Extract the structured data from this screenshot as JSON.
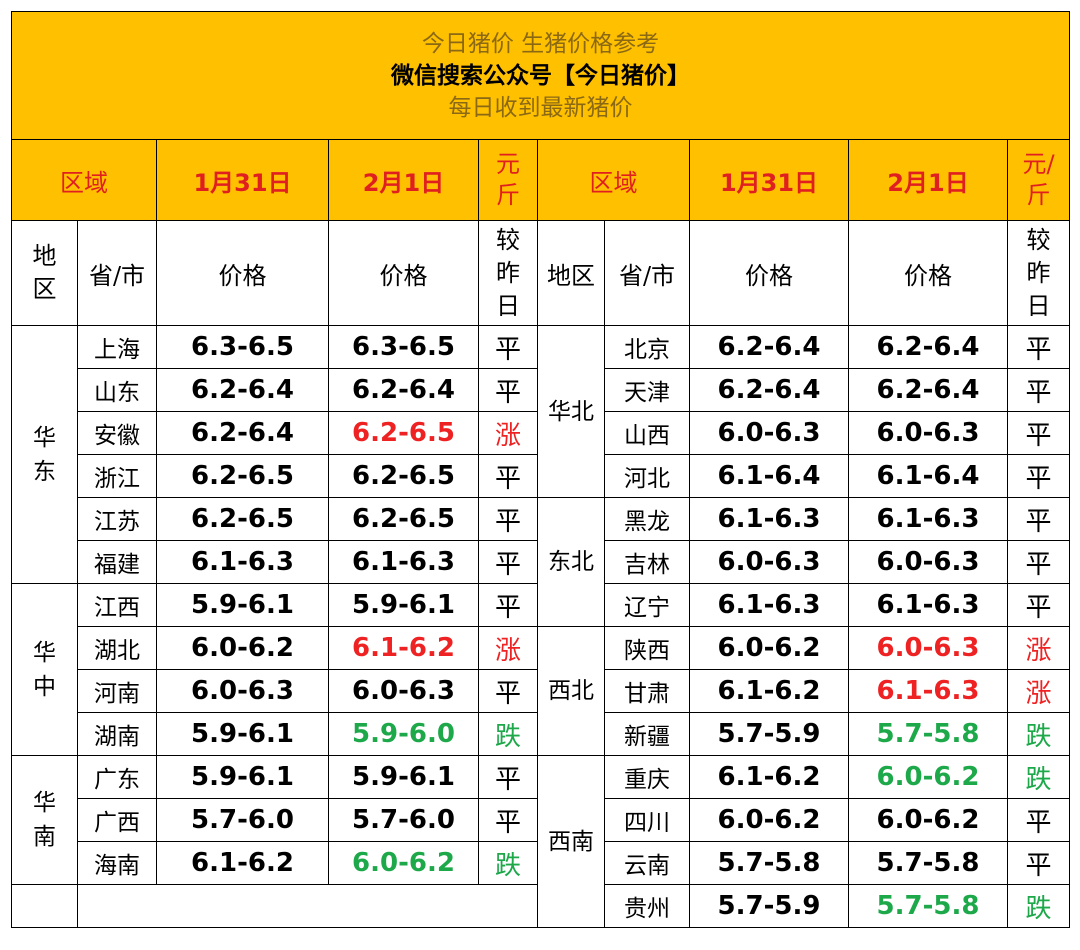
{
  "banner": {
    "line1": "今日猪价  生猪价格参考",
    "line2": "微信搜索公众号【今日猪价】",
    "line3": "每日收到最新猪价"
  },
  "header": {
    "region": "区域",
    "date1": "1月31日",
    "date2": "2月1日",
    "unit_left": [
      "元",
      "斤"
    ],
    "unit_right": [
      "元/",
      "斤"
    ]
  },
  "subheader": {
    "district_v": [
      "地",
      "区"
    ],
    "district": "地区",
    "province": "省/市",
    "price": "价格",
    "compare": [
      "较",
      "昨",
      "日"
    ]
  },
  "colors": {
    "flat": "#000000",
    "up": "#EE2222",
    "down": "#1DA84A",
    "banner": "#FFC000"
  },
  "left_regions": [
    {
      "name": [
        "华",
        "东"
      ],
      "rows": [
        {
          "province": "上海",
          "p1": "6.3-6.5",
          "p2": "6.3-6.5",
          "cmp": "平",
          "trend": "flat"
        },
        {
          "province": "山东",
          "p1": "6.2-6.4",
          "p2": "6.2-6.4",
          "cmp": "平",
          "trend": "flat"
        },
        {
          "province": "安徽",
          "p1": "6.2-6.4",
          "p2": "6.2-6.5",
          "cmp": "涨",
          "trend": "up"
        },
        {
          "province": "浙江",
          "p1": "6.2-6.5",
          "p2": "6.2-6.5",
          "cmp": "平",
          "trend": "flat"
        },
        {
          "province": "江苏",
          "p1": "6.2-6.5",
          "p2": "6.2-6.5",
          "cmp": "平",
          "trend": "flat"
        },
        {
          "province": "福建",
          "p1": "6.1-6.3",
          "p2": "6.1-6.3",
          "cmp": "平",
          "trend": "flat"
        }
      ]
    },
    {
      "name": [
        "华",
        "中"
      ],
      "rows": [
        {
          "province": "江西",
          "p1": "5.9-6.1",
          "p2": "5.9-6.1",
          "cmp": "平",
          "trend": "flat"
        },
        {
          "province": "湖北",
          "p1": "6.0-6.2",
          "p2": "6.1-6.2",
          "cmp": "涨",
          "trend": "up"
        },
        {
          "province": "河南",
          "p1": "6.0-6.3",
          "p2": "6.0-6.3",
          "cmp": "平",
          "trend": "flat"
        },
        {
          "province": "湖南",
          "p1": "5.9-6.1",
          "p2": "5.9-6.0",
          "cmp": "跌",
          "trend": "down"
        }
      ]
    },
    {
      "name": [
        "华",
        "南"
      ],
      "rows": [
        {
          "province": "广东",
          "p1": "5.9-6.1",
          "p2": "5.9-6.1",
          "cmp": "平",
          "trend": "flat"
        },
        {
          "province": "广西",
          "p1": "5.7-6.0",
          "p2": "5.7-6.0",
          "cmp": "平",
          "trend": "flat"
        },
        {
          "province": "海南",
          "p1": "6.1-6.2",
          "p2": "6.0-6.2",
          "cmp": "跌",
          "trend": "down"
        }
      ]
    }
  ],
  "right_regions": [
    {
      "name": [
        "华北"
      ],
      "rows": [
        {
          "province": "北京",
          "p1": "6.2-6.4",
          "p2": "6.2-6.4",
          "cmp": "平",
          "trend": "flat"
        },
        {
          "province": "天津",
          "p1": "6.2-6.4",
          "p2": "6.2-6.4",
          "cmp": "平",
          "trend": "flat"
        },
        {
          "province": "山西",
          "p1": "6.0-6.3",
          "p2": "6.0-6.3",
          "cmp": "平",
          "trend": "flat"
        },
        {
          "province": "河北",
          "p1": "6.1-6.4",
          "p2": "6.1-6.4",
          "cmp": "平",
          "trend": "flat"
        }
      ]
    },
    {
      "name": [
        "东北"
      ],
      "rows": [
        {
          "province": "黑龙",
          "p1": "6.1-6.3",
          "p2": "6.1-6.3",
          "cmp": "平",
          "trend": "flat"
        },
        {
          "province": "吉林",
          "p1": "6.0-6.3",
          "p2": "6.0-6.3",
          "cmp": "平",
          "trend": "flat"
        },
        {
          "province": "辽宁",
          "p1": "6.1-6.3",
          "p2": "6.1-6.3",
          "cmp": "平",
          "trend": "flat"
        }
      ]
    },
    {
      "name": [
        "西北"
      ],
      "rows": [
        {
          "province": "陕西",
          "p1": "6.0-6.2",
          "p2": "6.0-6.3",
          "cmp": "涨",
          "trend": "up"
        },
        {
          "province": "甘肃",
          "p1": "6.1-6.2",
          "p2": "6.1-6.3",
          "cmp": "涨",
          "trend": "up"
        },
        {
          "province": "新疆",
          "p1": "5.7-5.9",
          "p2": "5.7-5.8",
          "cmp": "跌",
          "trend": "down"
        }
      ]
    },
    {
      "name": [
        "西南"
      ],
      "rows": [
        {
          "province": "重庆",
          "p1": "6.1-6.2",
          "p2": "6.0-6.2",
          "cmp": "跌",
          "trend": "down"
        },
        {
          "province": "四川",
          "p1": "6.0-6.2",
          "p2": "6.0-6.2",
          "cmp": "平",
          "trend": "flat"
        },
        {
          "province": "云南",
          "p1": "5.7-5.8",
          "p2": "5.7-5.8",
          "cmp": "平",
          "trend": "flat"
        },
        {
          "province": "贵州",
          "p1": "5.7-5.9",
          "p2": "5.7-5.8",
          "cmp": "跌",
          "trend": "down"
        }
      ]
    }
  ]
}
